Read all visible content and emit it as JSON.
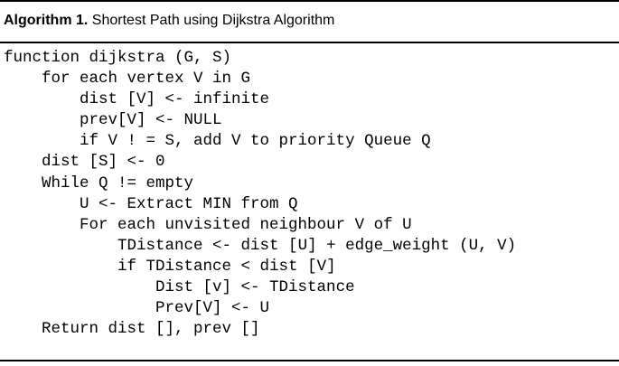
{
  "caption": {
    "label": "Algorithm 1.",
    "title": "Shortest Path using Dijkstra Algorithm"
  },
  "code_lines": [
    {
      "indent": 0,
      "text": "function dijkstra (G, S)"
    },
    {
      "indent": 1,
      "text": "for each vertex V in G"
    },
    {
      "indent": 2,
      "text": "dist [V] <- infinite"
    },
    {
      "indent": 2,
      "text": "prev[V] <- NULL"
    },
    {
      "indent": 2,
      "text": "if V ! = S, add V to priority Queue Q"
    },
    {
      "indent": 1,
      "text": "dist [S] <- 0"
    },
    {
      "indent": 1,
      "text": "While Q != empty"
    },
    {
      "indent": 2,
      "text": "U <- Extract MIN from Q"
    },
    {
      "indent": 2,
      "text": "For each unvisited neighbour V of U"
    },
    {
      "indent": 3,
      "text": "TDistance <- dist [U] + edge_weight (U, V)"
    },
    {
      "indent": 3,
      "text": "if TDistance < dist [V]"
    },
    {
      "indent": 4,
      "text": "Dist [v] <- TDistance"
    },
    {
      "indent": 4,
      "text": "Prev[V] <- U"
    },
    {
      "indent": 1,
      "text": "Return dist [], prev []"
    }
  ]
}
